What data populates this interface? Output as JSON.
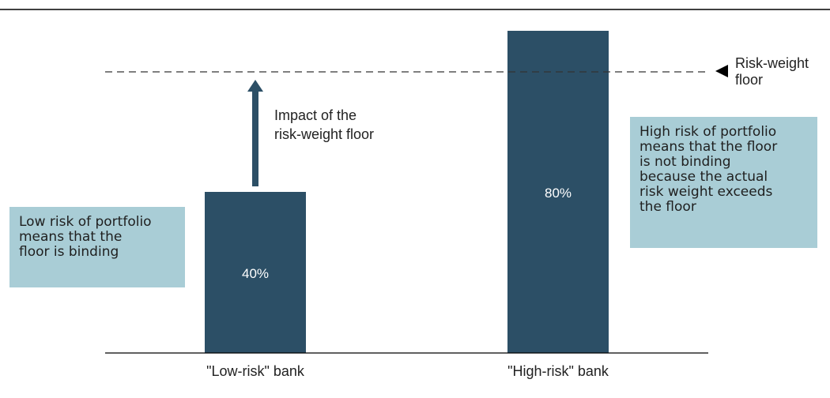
{
  "chart_data": {
    "type": "bar",
    "categories": [
      "\"Low-risk\" bank",
      "\"High-risk\" bank"
    ],
    "values": [
      40,
      80
    ],
    "value_labels": [
      "40%",
      "80%"
    ],
    "title": "",
    "xlabel": "",
    "ylabel": "",
    "grid": false,
    "legend": "none",
    "bar_color": "#2c4f66",
    "floor_line": {
      "label": "Risk-weight\nfloor",
      "style": "dashed"
    },
    "annotations": {
      "arrow_label": "Impact of the\nrisk-weight floor",
      "low_note": "Low risk of portfolio\nmeans that the\nfloor is binding",
      "high_note": "High risk of portfolio\nmeans that the floor\nis not binding\nbecause the actual\nrisk weight exceeds\nthe floor",
      "note_color": "#a9cdd6"
    }
  }
}
